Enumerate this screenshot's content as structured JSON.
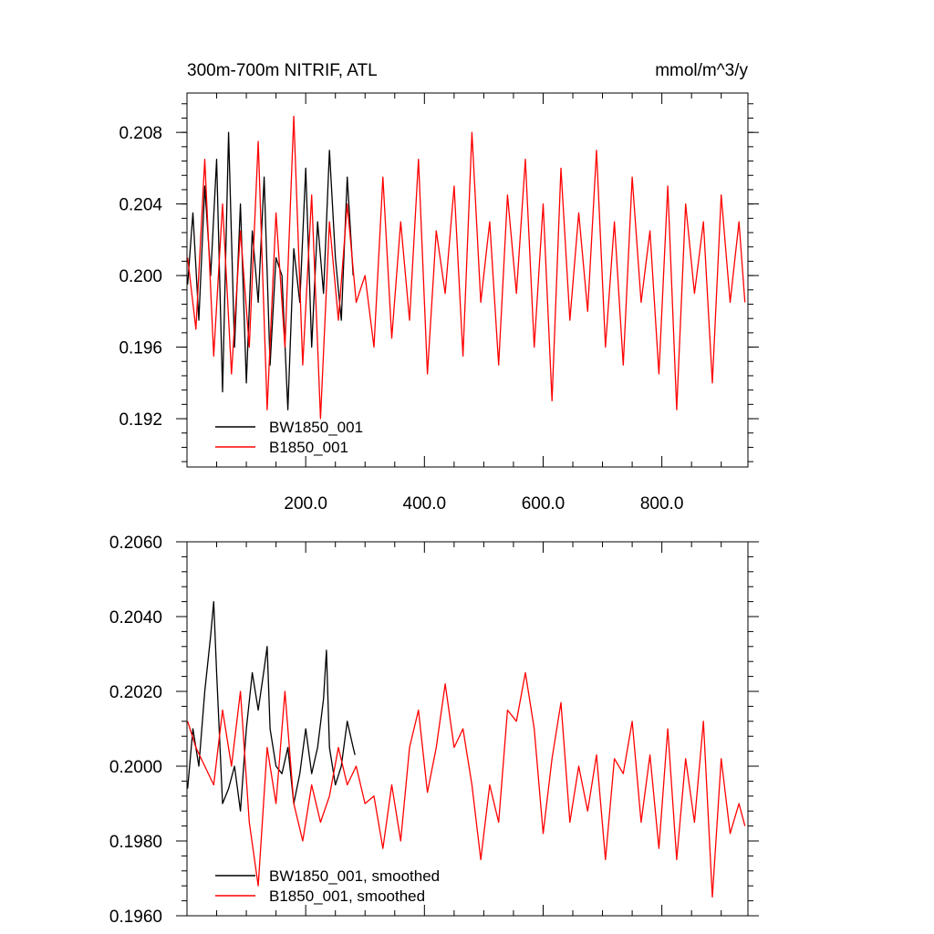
{
  "chart_data": [
    {
      "type": "line",
      "title": "300m-700m NITRIF, ATL",
      "units": "mmol/m^3/y",
      "xlim": [
        0,
        945
      ],
      "ylim": [
        0.1893,
        0.2102
      ],
      "x_ticks": [
        200,
        400,
        600,
        800
      ],
      "x_tick_labels": [
        "200.0",
        "400.0",
        "600.0",
        "800.0"
      ],
      "y_ticks": [
        0.192,
        0.196,
        0.2,
        0.204,
        0.208
      ],
      "y_tick_labels": [
        "0.192",
        "0.196",
        "0.200",
        "0.204",
        "0.208"
      ],
      "legend_position": "bottom-left",
      "series": [
        {
          "name": "BW1850_001",
          "color": "#000000",
          "x": [
            1,
            10,
            20,
            30,
            40,
            50,
            60,
            70,
            80,
            90,
            100,
            110,
            120,
            130,
            140,
            150,
            160,
            170,
            180,
            190,
            200,
            210,
            220,
            230,
            240,
            250,
            260,
            270,
            280
          ],
          "y": [
            0.1995,
            0.2035,
            0.1975,
            0.205,
            0.2,
            0.2065,
            0.1935,
            0.208,
            0.196,
            0.204,
            0.194,
            0.2025,
            0.1985,
            0.2055,
            0.195,
            0.201,
            0.2,
            0.1925,
            0.2015,
            0.1985,
            0.206,
            0.196,
            0.203,
            0.199,
            0.207,
            0.201,
            0.1975,
            0.2055,
            0.2
          ]
        },
        {
          "name": "B1850_001",
          "color": "#ff0000",
          "x": [
            1,
            15,
            30,
            45,
            60,
            75,
            90,
            105,
            120,
            135,
            150,
            165,
            180,
            195,
            210,
            225,
            240,
            255,
            270,
            285,
            300,
            315,
            330,
            345,
            360,
            375,
            390,
            405,
            420,
            435,
            450,
            465,
            480,
            495,
            510,
            525,
            540,
            555,
            570,
            585,
            600,
            615,
            630,
            645,
            660,
            675,
            690,
            705,
            720,
            735,
            750,
            765,
            780,
            795,
            810,
            825,
            840,
            855,
            870,
            885,
            900,
            915,
            930,
            940
          ],
          "y": [
            0.201,
            0.197,
            0.2065,
            0.1955,
            0.204,
            0.1945,
            0.2025,
            0.196,
            0.2075,
            0.1925,
            0.2035,
            0.196,
            0.2089,
            0.195,
            0.2045,
            0.192,
            0.203,
            0.1975,
            0.204,
            0.1985,
            0.2,
            0.196,
            0.2055,
            0.1965,
            0.203,
            0.1975,
            0.2065,
            0.1945,
            0.2025,
            0.199,
            0.205,
            0.1955,
            0.208,
            0.1985,
            0.203,
            0.195,
            0.2045,
            0.199,
            0.2065,
            0.196,
            0.204,
            0.193,
            0.206,
            0.1975,
            0.2035,
            0.198,
            0.207,
            0.196,
            0.203,
            0.195,
            0.2055,
            0.1985,
            0.2025,
            0.1945,
            0.205,
            0.1925,
            0.204,
            0.199,
            0.203,
            0.194,
            0.2045,
            0.1985,
            0.203,
            0.1985
          ]
        }
      ]
    },
    {
      "type": "line",
      "title": "",
      "xlim": [
        0,
        945
      ],
      "ylim": [
        0.196,
        0.206
      ],
      "y_ticks": [
        0.196,
        0.198,
        0.2,
        0.202,
        0.204,
        0.206
      ],
      "y_tick_labels": [
        "0.1960",
        "0.1980",
        "0.2000",
        "0.2020",
        "0.2040",
        "0.2060"
      ],
      "legend_position": "bottom-left",
      "series": [
        {
          "name": "BW1850_001, smoothed",
          "color": "#000000",
          "x": [
            1,
            10,
            20,
            30,
            40,
            45,
            50,
            60,
            70,
            80,
            90,
            100,
            110,
            120,
            130,
            135,
            140,
            150,
            160,
            170,
            180,
            190,
            200,
            210,
            220,
            230,
            235,
            240,
            250,
            260,
            270,
            280,
            283
          ],
          "y": [
            0.1994,
            0.201,
            0.2,
            0.202,
            0.2035,
            0.2044,
            0.2025,
            0.199,
            0.1994,
            0.2,
            0.1988,
            0.201,
            0.2025,
            0.2015,
            0.2026,
            0.2032,
            0.201,
            0.2,
            0.1998,
            0.2005,
            0.199,
            0.1998,
            0.201,
            0.1998,
            0.2005,
            0.2018,
            0.2031,
            0.2005,
            0.1995,
            0.2,
            0.2012,
            0.2005,
            0.2003
          ]
        },
        {
          "name": "B1850_001, smoothed",
          "color": "#ff0000",
          "x": [
            1,
            15,
            30,
            45,
            60,
            75,
            90,
            105,
            120,
            135,
            150,
            165,
            180,
            195,
            210,
            225,
            240,
            255,
            270,
            285,
            300,
            315,
            330,
            345,
            360,
            375,
            390,
            405,
            420,
            435,
            450,
            465,
            480,
            495,
            510,
            525,
            540,
            555,
            570,
            585,
            600,
            615,
            630,
            645,
            660,
            675,
            690,
            705,
            720,
            735,
            750,
            765,
            780,
            795,
            810,
            825,
            840,
            855,
            870,
            885,
            900,
            915,
            930,
            940
          ],
          "y": [
            0.2012,
            0.2005,
            0.2,
            0.1995,
            0.2015,
            0.2,
            0.202,
            0.1985,
            0.1968,
            0.2005,
            0.199,
            0.202,
            0.199,
            0.198,
            0.1995,
            0.1985,
            0.1992,
            0.2005,
            0.1995,
            0.2,
            0.199,
            0.1992,
            0.1978,
            0.1995,
            0.198,
            0.2005,
            0.2015,
            0.1993,
            0.2005,
            0.2022,
            0.2005,
            0.201,
            0.1995,
            0.1975,
            0.1995,
            0.1985,
            0.2015,
            0.2012,
            0.2025,
            0.201,
            0.1982,
            0.2002,
            0.2017,
            0.1985,
            0.2,
            0.1988,
            0.2003,
            0.1975,
            0.2002,
            0.1998,
            0.2012,
            0.1985,
            0.2003,
            0.1978,
            0.201,
            0.1975,
            0.2002,
            0.1985,
            0.2012,
            0.1965,
            0.2002,
            0.1982,
            0.199,
            0.1984
          ]
        }
      ]
    }
  ]
}
